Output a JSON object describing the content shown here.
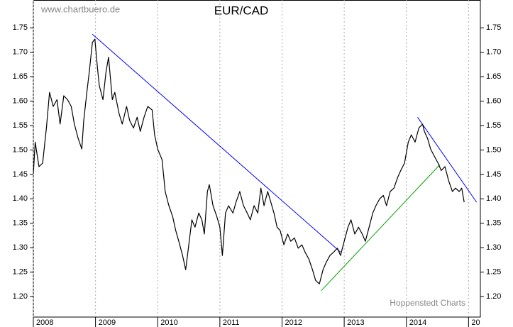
{
  "chart_data": {
    "type": "line",
    "title": "EUR/CAD",
    "watermark": "www.chartbuero.de",
    "source": "Hoppenstedt Charts",
    "xlim": [
      2008.0,
      2015.19
    ],
    "ylim": [
      1.158,
      1.807
    ],
    "xticks": [
      2008,
      2009,
      2010,
      2011,
      2012,
      2013,
      2014,
      {
        "value": 2015,
        "label": "20"
      }
    ],
    "yticks": [
      {
        "value": 1.2,
        "label": "1.20"
      },
      1.25,
      {
        "value": 1.3,
        "label": "1.30"
      },
      1.35,
      {
        "value": 1.4,
        "label": "1.40"
      },
      1.45,
      {
        "value": 1.5,
        "label": "1.50"
      },
      1.55,
      {
        "value": 1.6,
        "label": "1.60"
      },
      1.65,
      {
        "value": 1.7,
        "label": "1.70"
      },
      1.75
    ],
    "grid": true,
    "series": [
      {
        "color": "#000000",
        "x": [
          2008.0,
          2008.03,
          2008.09,
          2008.15,
          2008.21,
          2008.26,
          2008.32,
          2008.38,
          2008.43,
          2008.49,
          2008.55,
          2008.61,
          2008.66,
          2008.72,
          2008.78,
          2008.81,
          2008.86,
          2008.9,
          2008.95,
          2008.99,
          2009.03,
          2009.06,
          2009.12,
          2009.17,
          2009.21,
          2009.27,
          2009.31,
          2009.38,
          2009.43,
          2009.5,
          2009.55,
          2009.61,
          2009.67,
          2009.72,
          2009.78,
          2009.84,
          2009.91,
          2009.95,
          2010.0,
          2010.07,
          2010.12,
          2010.18,
          2010.24,
          2010.29,
          2010.34,
          2010.4,
          2010.45,
          2010.5,
          2010.55,
          2010.6,
          2010.66,
          2010.71,
          2010.75,
          2010.8,
          2010.83,
          2010.89,
          2010.95,
          2011.0,
          2011.04,
          2011.09,
          2011.14,
          2011.21,
          2011.26,
          2011.32,
          2011.38,
          2011.44,
          2011.49,
          2011.55,
          2011.61,
          2011.66,
          2011.71,
          2011.77,
          2011.82,
          2011.87,
          2011.92,
          2011.97,
          2012.03,
          2012.09,
          2012.14,
          2012.2,
          2012.26,
          2012.32,
          2012.37,
          2012.43,
          2012.49,
          2012.54,
          2012.6,
          2012.66,
          2012.71,
          2012.77,
          2012.83,
          2012.89,
          2012.94,
          2013.0,
          2013.06,
          2013.11,
          2013.17,
          2013.23,
          2013.29,
          2013.34,
          2013.4,
          2013.46,
          2013.51,
          2013.57,
          2013.63,
          2013.68,
          2013.74,
          2013.8,
          2013.86,
          2013.91,
          2013.97,
          2014.03,
          2014.08,
          2014.14,
          2014.2,
          2014.26,
          2014.29,
          2014.34,
          2014.39,
          2014.45,
          2014.51,
          2014.56,
          2014.62,
          2014.68,
          2014.74,
          2014.79,
          2014.85,
          2014.89,
          2014.93
        ],
        "values": [
          1.451,
          1.516,
          1.466,
          1.473,
          1.545,
          1.618,
          1.589,
          1.603,
          1.553,
          1.611,
          1.603,
          1.589,
          1.553,
          1.524,
          1.502,
          1.56,
          1.618,
          1.661,
          1.72,
          1.727,
          1.669,
          1.632,
          1.603,
          1.661,
          1.69,
          1.603,
          1.618,
          1.574,
          1.553,
          1.589,
          1.56,
          1.545,
          1.567,
          1.538,
          1.567,
          1.589,
          1.582,
          1.531,
          1.502,
          1.48,
          1.415,
          1.386,
          1.364,
          1.335,
          1.313,
          1.284,
          1.255,
          1.306,
          1.357,
          1.342,
          1.371,
          1.357,
          1.328,
          1.415,
          1.429,
          1.386,
          1.364,
          1.342,
          1.284,
          1.371,
          1.386,
          1.371,
          1.393,
          1.415,
          1.386,
          1.371,
          1.357,
          1.386,
          1.371,
          1.422,
          1.386,
          1.415,
          1.393,
          1.371,
          1.342,
          1.335,
          1.306,
          1.328,
          1.313,
          1.32,
          1.299,
          1.306,
          1.291,
          1.277,
          1.255,
          1.233,
          1.226,
          1.255,
          1.27,
          1.284,
          1.291,
          1.299,
          1.284,
          1.313,
          1.342,
          1.357,
          1.328,
          1.342,
          1.328,
          1.313,
          1.342,
          1.371,
          1.386,
          1.4,
          1.407,
          1.386,
          1.415,
          1.422,
          1.444,
          1.458,
          1.473,
          1.516,
          1.531,
          1.516,
          1.545,
          1.553,
          1.538,
          1.524,
          1.502,
          1.487,
          1.473,
          1.458,
          1.466,
          1.437,
          1.415,
          1.422,
          1.415,
          1.422,
          1.393
        ]
      }
    ],
    "trendlines": [
      {
        "color": "#0000ff",
        "x": [
          2008.95,
          2012.94
        ],
        "values": [
          1.737,
          1.291
        ]
      },
      {
        "color": "#0000ff",
        "x": [
          2014.18,
          2015.13
        ],
        "values": [
          1.567,
          1.393
        ]
      },
      {
        "color": "#00a000",
        "x": [
          2012.63,
          2014.54
        ],
        "values": [
          1.212,
          1.47
        ]
      }
    ]
  }
}
